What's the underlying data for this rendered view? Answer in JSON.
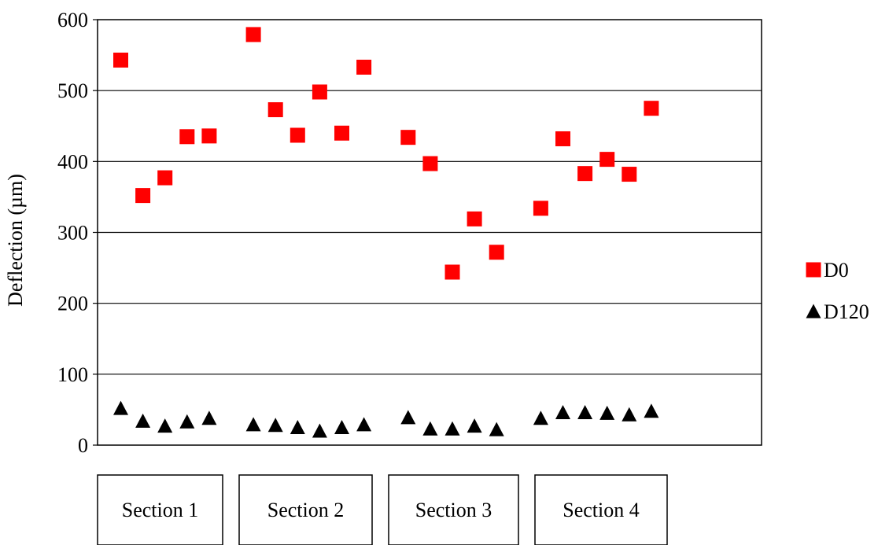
{
  "chart_data": {
    "type": "scatter",
    "ylabel": "Deflection (µm)",
    "ylim": [
      0,
      600
    ],
    "yticks": [
      0,
      100,
      200,
      300,
      400,
      500,
      600
    ],
    "grid": true,
    "legend_position": "right",
    "sections": [
      "Section 1",
      "Section 2",
      "Section 3",
      "Section 4"
    ],
    "series": [
      {
        "name": "D0",
        "marker": "square",
        "color": "#ff0000",
        "points": [
          {
            "x": 1,
            "y": 543
          },
          {
            "x": 2,
            "y": 352
          },
          {
            "x": 3,
            "y": 377
          },
          {
            "x": 4,
            "y": 435
          },
          {
            "x": 5,
            "y": 436
          },
          {
            "x": 7,
            "y": 579
          },
          {
            "x": 8,
            "y": 473
          },
          {
            "x": 9,
            "y": 437
          },
          {
            "x": 10,
            "y": 498
          },
          {
            "x": 11,
            "y": 440
          },
          {
            "x": 12,
            "y": 533
          },
          {
            "x": 14,
            "y": 434
          },
          {
            "x": 15,
            "y": 397
          },
          {
            "x": 16,
            "y": 244
          },
          {
            "x": 17,
            "y": 319
          },
          {
            "x": 18,
            "y": 272
          },
          {
            "x": 20,
            "y": 334
          },
          {
            "x": 21,
            "y": 432
          },
          {
            "x": 22,
            "y": 383
          },
          {
            "x": 23,
            "y": 403
          },
          {
            "x": 24,
            "y": 382
          },
          {
            "x": 25,
            "y": 475
          }
        ]
      },
      {
        "name": "D120",
        "marker": "triangle",
        "color": "#000000",
        "points": [
          {
            "x": 1,
            "y": 52
          },
          {
            "x": 2,
            "y": 34
          },
          {
            "x": 3,
            "y": 27
          },
          {
            "x": 4,
            "y": 33
          },
          {
            "x": 5,
            "y": 38
          },
          {
            "x": 7,
            "y": 29
          },
          {
            "x": 8,
            "y": 28
          },
          {
            "x": 9,
            "y": 25
          },
          {
            "x": 10,
            "y": 20
          },
          {
            "x": 11,
            "y": 25
          },
          {
            "x": 12,
            "y": 29
          },
          {
            "x": 14,
            "y": 39
          },
          {
            "x": 15,
            "y": 23
          },
          {
            "x": 16,
            "y": 23
          },
          {
            "x": 17,
            "y": 27
          },
          {
            "x": 18,
            "y": 22
          },
          {
            "x": 20,
            "y": 38
          },
          {
            "x": 21,
            "y": 46
          },
          {
            "x": 22,
            "y": 46
          },
          {
            "x": 23,
            "y": 45
          },
          {
            "x": 24,
            "y": 43
          },
          {
            "x": 25,
            "y": 48
          }
        ]
      }
    ]
  }
}
